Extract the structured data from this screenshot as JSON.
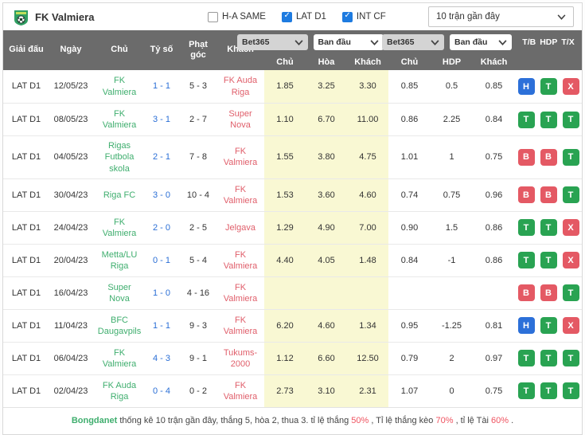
{
  "header": {
    "team": "FK Valmiera",
    "checkboxes": [
      {
        "label": "H-A SAME",
        "checked": false
      },
      {
        "label": "LAT D1",
        "checked": true
      },
      {
        "label": "INT CF",
        "checked": true
      }
    ],
    "range_label": "10 trận gần đây"
  },
  "table": {
    "columns": {
      "league": "Giải đấu",
      "date": "Ngày",
      "home": "Chủ",
      "score": "Tỷ số",
      "corner": "Phạt góc",
      "away": "Khách",
      "tb": "T/B",
      "hdp": "HDP",
      "tx": "T/X"
    },
    "odds_group": {
      "bookmaker": "Bet365",
      "line": "Ban đầu",
      "sub": [
        "Chủ",
        "Hòa",
        "Khách"
      ]
    },
    "hdp_group": {
      "bookmaker": "Bet365",
      "line": "Ban đầu",
      "sub": [
        "Chủ",
        "HDP",
        "Khách"
      ]
    }
  },
  "rows": [
    {
      "league": "LAT D1",
      "date": "12/05/23",
      "home": "FK Valmiera",
      "score": "1 - 1",
      "corner": "5 - 3",
      "away": "FK Auda Riga",
      "odds_1x2": [
        "1.85",
        "3.25",
        "3.30"
      ],
      "odds_hdp": [
        "0.85",
        "0.5",
        "0.85"
      ],
      "badges": [
        {
          "label": "H",
          "color": "blue"
        },
        {
          "label": "T",
          "color": "green"
        },
        {
          "label": "X",
          "color": "red"
        }
      ]
    },
    {
      "league": "LAT D1",
      "date": "08/05/23",
      "home": "FK Valmiera",
      "score": "3 - 1",
      "corner": "2 - 7",
      "away": "Super Nova",
      "odds_1x2": [
        "1.10",
        "6.70",
        "11.00"
      ],
      "odds_hdp": [
        "0.86",
        "2.25",
        "0.84"
      ],
      "badges": [
        {
          "label": "T",
          "color": "green"
        },
        {
          "label": "T",
          "color": "green"
        },
        {
          "label": "T",
          "color": "green"
        }
      ]
    },
    {
      "league": "LAT D1",
      "date": "04/05/23",
      "home": "Rigas Futbola skola",
      "score": "2 - 1",
      "corner": "7 - 8",
      "away": "FK Valmiera",
      "odds_1x2": [
        "1.55",
        "3.80",
        "4.75"
      ],
      "odds_hdp": [
        "1.01",
        "1",
        "0.75"
      ],
      "badges": [
        {
          "label": "B",
          "color": "red"
        },
        {
          "label": "B",
          "color": "red"
        },
        {
          "label": "T",
          "color": "green"
        }
      ]
    },
    {
      "league": "LAT D1",
      "date": "30/04/23",
      "home": "Riga FC",
      "score": "3 - 0",
      "corner": "10 - 4",
      "away": "FK Valmiera",
      "odds_1x2": [
        "1.53",
        "3.60",
        "4.60"
      ],
      "odds_hdp": [
        "0.74",
        "0.75",
        "0.96"
      ],
      "badges": [
        {
          "label": "B",
          "color": "red"
        },
        {
          "label": "B",
          "color": "red"
        },
        {
          "label": "T",
          "color": "green"
        }
      ]
    },
    {
      "league": "LAT D1",
      "date": "24/04/23",
      "home": "FK Valmiera",
      "score": "2 - 0",
      "corner": "2 - 5",
      "away": "Jelgava",
      "odds_1x2": [
        "1.29",
        "4.90",
        "7.00"
      ],
      "odds_hdp": [
        "0.90",
        "1.5",
        "0.86"
      ],
      "badges": [
        {
          "label": "T",
          "color": "green"
        },
        {
          "label": "T",
          "color": "green"
        },
        {
          "label": "X",
          "color": "red"
        }
      ]
    },
    {
      "league": "LAT D1",
      "date": "20/04/23",
      "home": "Metta/LU Riga",
      "score": "0 - 1",
      "corner": "5 - 4",
      "away": "FK Valmiera",
      "odds_1x2": [
        "4.40",
        "4.05",
        "1.48"
      ],
      "odds_hdp": [
        "0.84",
        "-1",
        "0.86"
      ],
      "badges": [
        {
          "label": "T",
          "color": "green"
        },
        {
          "label": "T",
          "color": "green"
        },
        {
          "label": "X",
          "color": "red"
        }
      ]
    },
    {
      "league": "LAT D1",
      "date": "16/04/23",
      "home": "Super Nova",
      "score": "1 - 0",
      "corner": "4 - 16",
      "away": "FK Valmiera",
      "odds_1x2": [
        "",
        "",
        ""
      ],
      "odds_hdp": [
        "",
        "",
        ""
      ],
      "badges": [
        {
          "label": "B",
          "color": "red"
        },
        {
          "label": "B",
          "color": "red"
        },
        {
          "label": "T",
          "color": "green"
        }
      ]
    },
    {
      "league": "LAT D1",
      "date": "11/04/23",
      "home": "BFC Daugavpils",
      "score": "1 - 1",
      "corner": "9 - 3",
      "away": "FK Valmiera",
      "odds_1x2": [
        "6.20",
        "4.60",
        "1.34"
      ],
      "odds_hdp": [
        "0.95",
        "-1.25",
        "0.81"
      ],
      "badges": [
        {
          "label": "H",
          "color": "blue"
        },
        {
          "label": "T",
          "color": "green"
        },
        {
          "label": "X",
          "color": "red"
        }
      ]
    },
    {
      "league": "LAT D1",
      "date": "06/04/23",
      "home": "FK Valmiera",
      "score": "4 - 3",
      "corner": "9 - 1",
      "away": "Tukums-2000",
      "odds_1x2": [
        "1.12",
        "6.60",
        "12.50"
      ],
      "odds_hdp": [
        "0.79",
        "2",
        "0.97"
      ],
      "badges": [
        {
          "label": "T",
          "color": "green"
        },
        {
          "label": "T",
          "color": "green"
        },
        {
          "label": "T",
          "color": "green"
        }
      ]
    },
    {
      "league": "LAT D1",
      "date": "02/04/23",
      "home": "FK Auda Riga",
      "score": "0 - 4",
      "corner": "0 - 2",
      "away": "FK Valmiera",
      "odds_1x2": [
        "2.73",
        "3.10",
        "2.31"
      ],
      "odds_hdp": [
        "1.07",
        "0",
        "0.75"
      ],
      "badges": [
        {
          "label": "T",
          "color": "green"
        },
        {
          "label": "T",
          "color": "green"
        },
        {
          "label": "T",
          "color": "green"
        }
      ]
    }
  ],
  "footer": {
    "segments": [
      {
        "text": "Bongdanet",
        "color": "green"
      },
      {
        "text": " thống kê 10 trận gần đây, thắng 5, hòa 2, thua 3. tỉ lệ thắng ",
        "color": "plain"
      },
      {
        "text": "50%",
        "color": "red"
      },
      {
        "text": ", Tỉ lệ thắng kèo ",
        "color": "plain"
      },
      {
        "text": "70%",
        "color": "red"
      },
      {
        "text": ", tỉ lệ Tài ",
        "color": "plain"
      },
      {
        "text": "60%",
        "color": "red"
      },
      {
        "text": ".",
        "color": "plain"
      }
    ]
  }
}
